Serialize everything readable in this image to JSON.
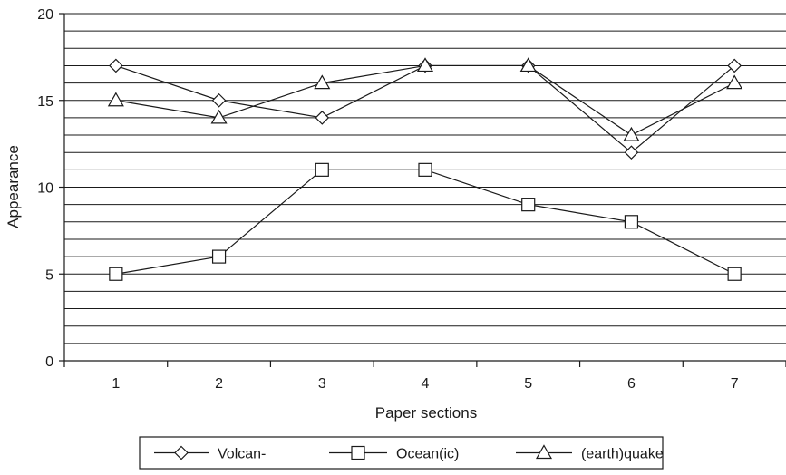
{
  "chart_data": {
    "type": "line",
    "title": "",
    "xlabel": "Paper sections",
    "ylabel": "Appearance",
    "categories": [
      "1",
      "2",
      "3",
      "4",
      "5",
      "6",
      "7"
    ],
    "ylim": [
      0,
      20
    ],
    "yticks": [
      "0",
      "5",
      "10",
      "15",
      "20"
    ],
    "grid": "horizontal, every 1 unit",
    "legend_position": "bottom",
    "series": [
      {
        "name": "Volcan-",
        "marker": "diamond",
        "values": [
          17,
          15,
          14,
          17,
          17,
          12,
          17
        ]
      },
      {
        "name": "Ocean(ic)",
        "marker": "square",
        "values": [
          5,
          6,
          11,
          11,
          9,
          8,
          5
        ]
      },
      {
        "name": "(earth)quake",
        "marker": "triangle",
        "values": [
          15,
          14,
          16,
          17,
          17,
          13,
          16
        ]
      }
    ],
    "colors": {
      "line": "#1a1a1a",
      "marker_fill": "#ffffff",
      "background": "#ffffff"
    }
  }
}
